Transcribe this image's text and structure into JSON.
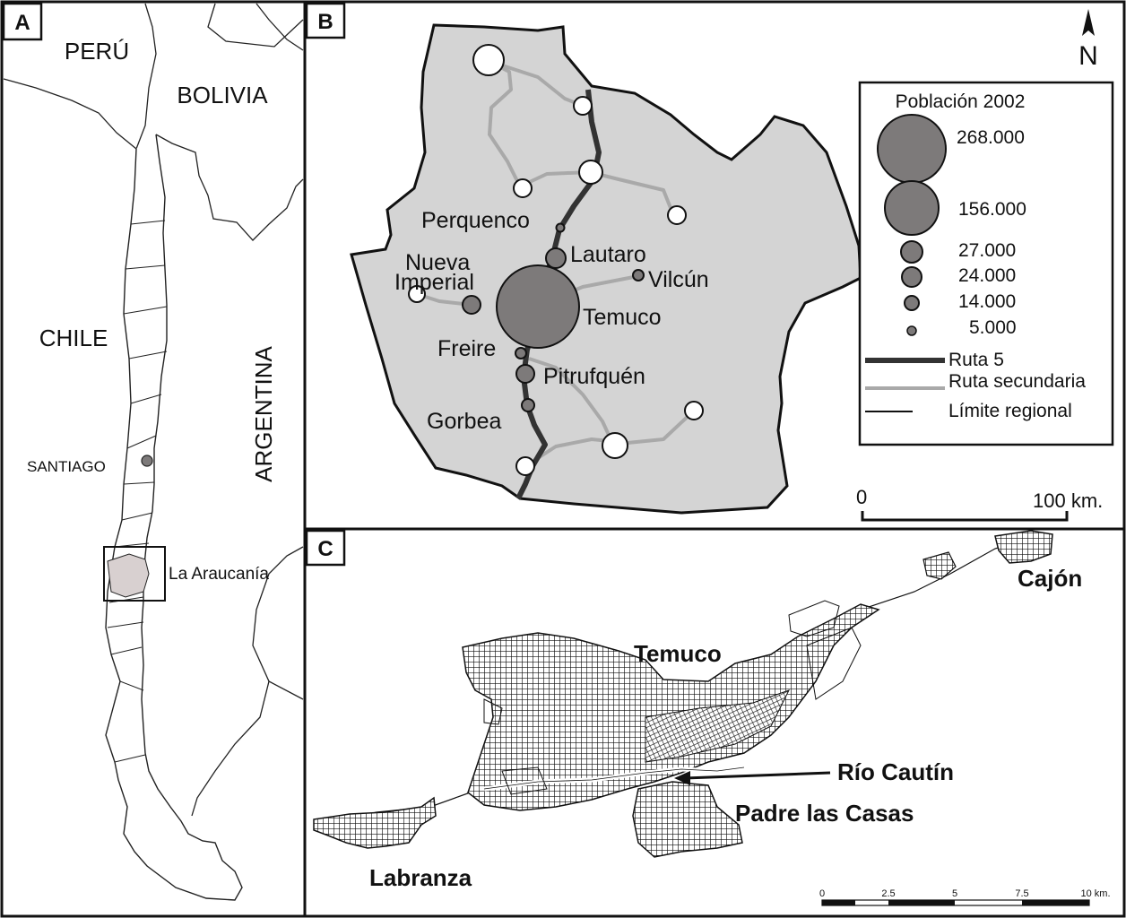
{
  "panels": {
    "a": {
      "tag": "A",
      "countries": {
        "peru": "PERÚ",
        "bolivia": "BOLIVIA",
        "chile": "CHILE",
        "argentina": "ARGENTINA"
      },
      "santiago": "SANTIAGO",
      "region": "La Araucanía"
    },
    "b": {
      "tag": "B",
      "north": "N",
      "towns": {
        "perquenco": "Perquenco",
        "lautaro": "Lautaro",
        "nueva": "Nueva",
        "imperial": "Imperial",
        "vilcun": "Vilcún",
        "temuco": "Temuco",
        "freire": "Freire",
        "pitrufquen": "Pitrufquén",
        "gorbea": "Gorbea"
      },
      "legend": {
        "title": "Población 2002",
        "sizes": [
          "268.000",
          "156.000",
          "27.000",
          "24.000",
          "14.000",
          "5.000"
        ],
        "ruta5": "Ruta 5",
        "secundaria": "Ruta secundaria",
        "limite": "Límite regional"
      },
      "scale": {
        "start": "0",
        "end": "100 km."
      }
    },
    "c": {
      "tag": "C",
      "places": {
        "temuco": "Temuco",
        "cajon": "Cajón",
        "rio": "Río Cautín",
        "padre": "Padre las Casas",
        "labranza": "Labranza"
      },
      "scale": [
        "0",
        "2.5",
        "5",
        "7.5",
        "10 km."
      ]
    }
  },
  "colors": {
    "region_fill": "#d4d4d4",
    "circle_gray": "#7d7a7a",
    "route_main": "#333333",
    "route_secondary": "#a9a9a9",
    "highlight": "#d8d0d0"
  }
}
